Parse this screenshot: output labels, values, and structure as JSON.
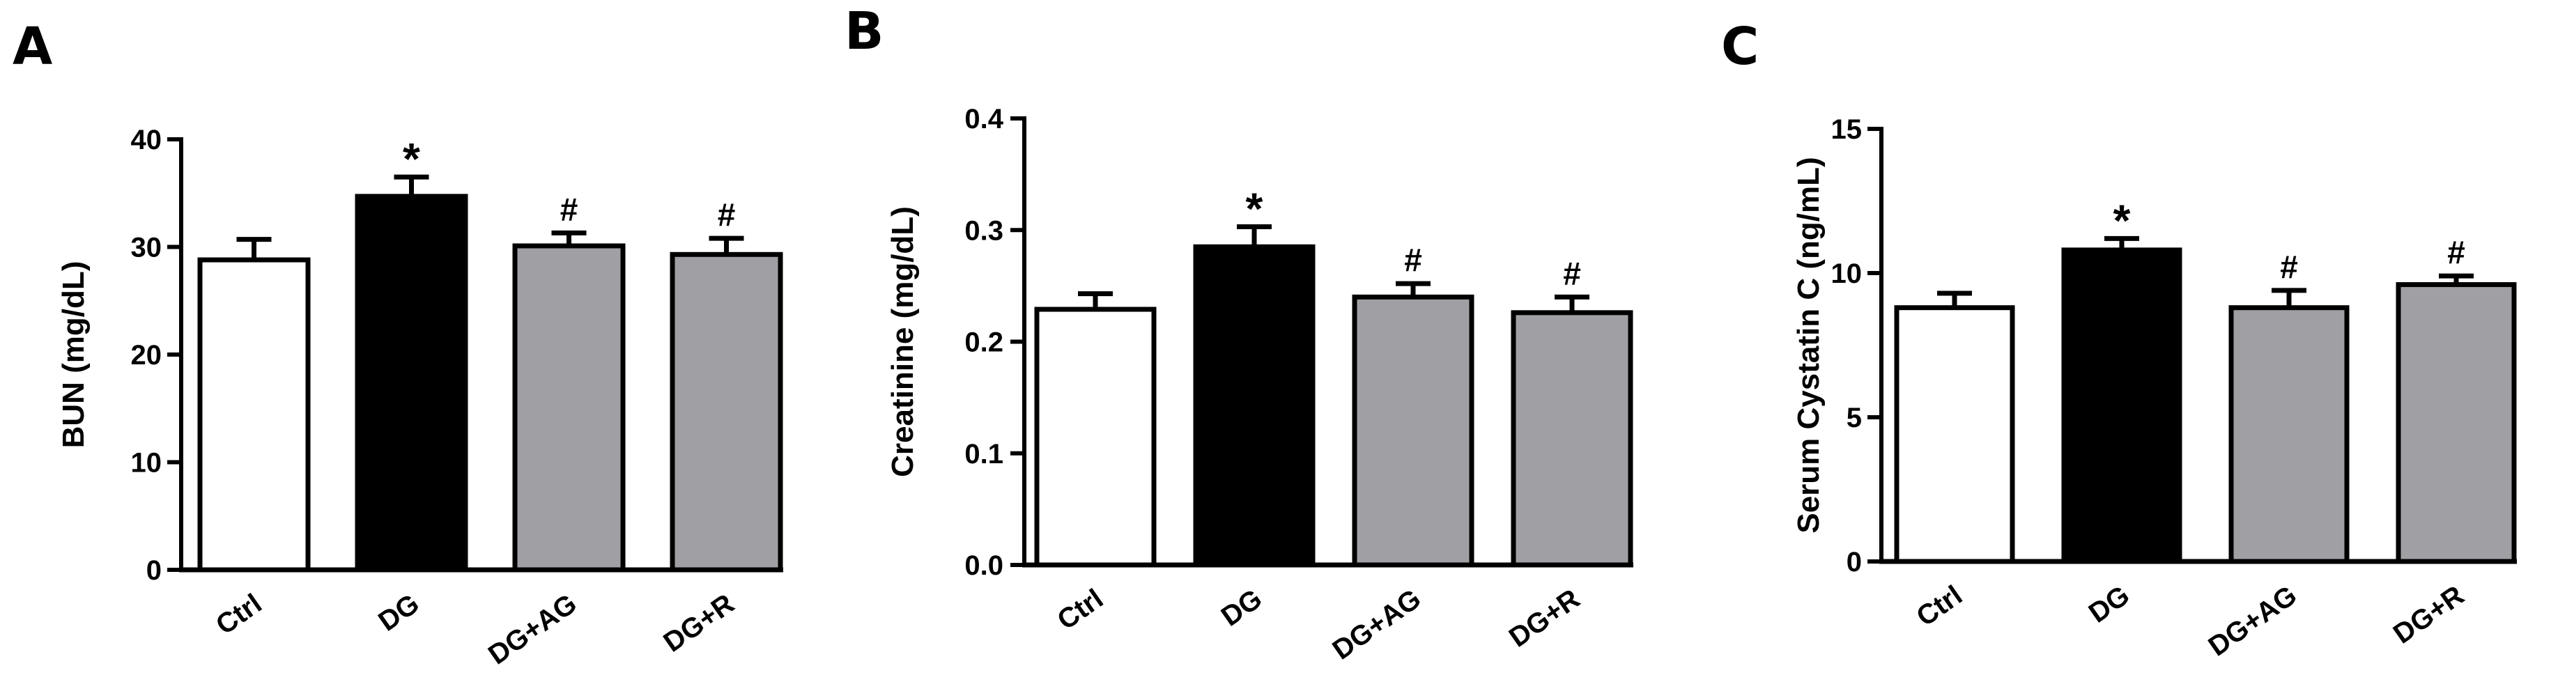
{
  "chart_data": [
    {
      "type": "bar",
      "panel_label": "A",
      "ylabel": "BUN (mg/dL)",
      "ylim": [
        0,
        40
      ],
      "yticks": [
        "0",
        "10",
        "20",
        "30",
        "40"
      ],
      "categories": [
        "Ctrl",
        "DG",
        "DG+AG",
        "DG+R"
      ],
      "values": [
        28.8,
        34.7,
        30.1,
        29.3
      ],
      "errors": [
        1.9,
        1.8,
        1.2,
        1.5
      ],
      "annotations": [
        "",
        "*",
        "#",
        "#"
      ],
      "colors": [
        "#ffffff",
        "#000000",
        "#a09fa4",
        "#a09fa4"
      ],
      "grid": false
    },
    {
      "type": "bar",
      "panel_label": "B",
      "ylabel": "Creatinine (mg/dL)",
      "ylim": [
        0,
        0.4
      ],
      "yticks": [
        "0.0",
        "0.1",
        "0.2",
        "0.3",
        "0.4"
      ],
      "categories": [
        "Ctrl",
        "DG",
        "DG+AG",
        "DG+R"
      ],
      "values": [
        0.229,
        0.285,
        0.24,
        0.226
      ],
      "errors": [
        0.014,
        0.018,
        0.012,
        0.014
      ],
      "annotations": [
        "",
        "*",
        "#",
        "#"
      ],
      "colors": [
        "#ffffff",
        "#000000",
        "#a09fa4",
        "#a09fa4"
      ],
      "grid": false
    },
    {
      "type": "bar",
      "panel_label": "C",
      "ylabel": "Serum Cystatin C (ng/mL)",
      "ylim": [
        0,
        15
      ],
      "yticks": [
        "0",
        "5",
        "10",
        "15"
      ],
      "categories": [
        "Ctrl",
        "DG",
        "DG+AG",
        "DG+R"
      ],
      "values": [
        8.8,
        10.8,
        8.8,
        9.6
      ],
      "errors": [
        0.5,
        0.4,
        0.6,
        0.3
      ],
      "annotations": [
        "",
        "*",
        "#",
        "#"
      ],
      "colors": [
        "#ffffff",
        "#000000",
        "#a09fa4",
        "#a09fa4"
      ],
      "grid": false
    }
  ]
}
